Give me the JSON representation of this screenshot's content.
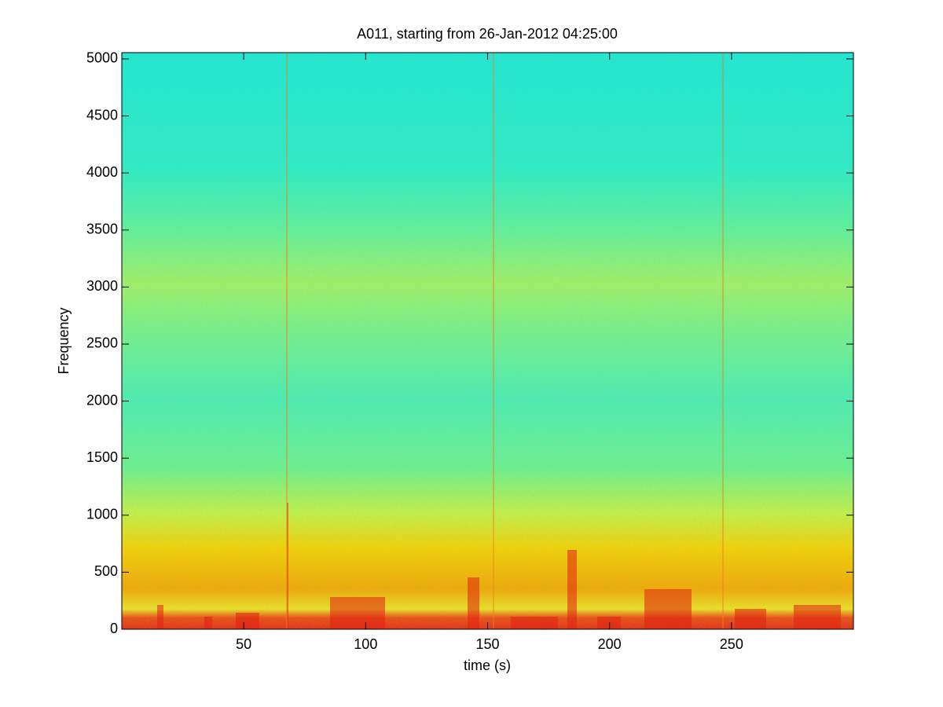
{
  "chart_data": {
    "type": "spectrogram",
    "title": "A011, starting from 26-Jan-2012 04:25:00",
    "x_label": "time (s)",
    "y_label": "Frequency",
    "xlim": [
      0,
      300
    ],
    "xticks": [
      50,
      100,
      150,
      200,
      250
    ],
    "ylim": [
      0,
      5055
    ],
    "yticks": [
      0,
      500,
      1000,
      1500,
      2000,
      2500,
      3000,
      3500,
      4000,
      4500,
      5000
    ]
  }
}
